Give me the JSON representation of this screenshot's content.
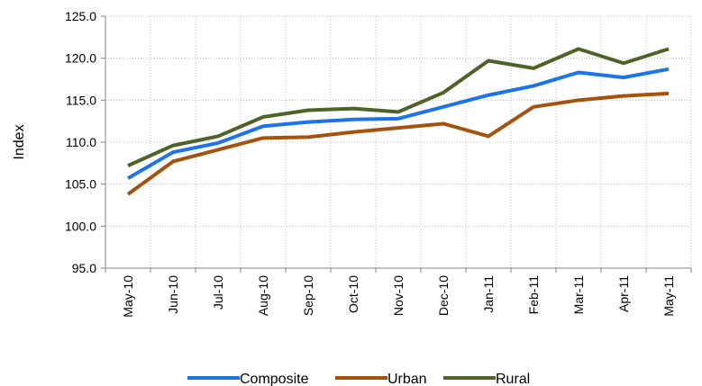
{
  "chart_data": {
    "type": "line",
    "y_label": "Index",
    "categories": [
      "May-10",
      "Jun-10",
      "Jul-10",
      "Aug-10",
      "Sep-10",
      "Oct-10",
      "Nov-10",
      "Dec-10",
      "Jan-11",
      "Feb-11",
      "Mar-11",
      "Apr-11",
      "May-11"
    ],
    "series": [
      {
        "name": "Composite",
        "color": "#1c74e8",
        "values": [
          105.7,
          108.8,
          109.9,
          111.9,
          112.4,
          112.7,
          112.8,
          114.2,
          115.6,
          116.7,
          118.3,
          117.7,
          118.7
        ]
      },
      {
        "name": "Urban",
        "color": "#a5520e",
        "values": [
          103.8,
          107.7,
          109.1,
          110.5,
          110.6,
          111.2,
          111.7,
          112.2,
          110.7,
          114.2,
          115.0,
          115.5,
          115.8
        ]
      },
      {
        "name": "Rural",
        "color": "#4f6228",
        "values": [
          107.2,
          109.6,
          110.7,
          113.0,
          113.8,
          114.0,
          113.6,
          115.9,
          119.7,
          118.8,
          121.1,
          119.4,
          121.1
        ]
      }
    ],
    "ylim": [
      95,
      125
    ],
    "yticks": [
      {
        "value": 95,
        "label": "95.0"
      },
      {
        "value": 100,
        "label": "100.0"
      },
      {
        "value": 105,
        "label": "105.0"
      },
      {
        "value": 110,
        "label": "110.0"
      },
      {
        "value": 115,
        "label": "115.0"
      },
      {
        "value": 120,
        "label": "120.0"
      },
      {
        "value": 125,
        "label": "125.0"
      }
    ],
    "grid": true,
    "legend": "bottom"
  }
}
